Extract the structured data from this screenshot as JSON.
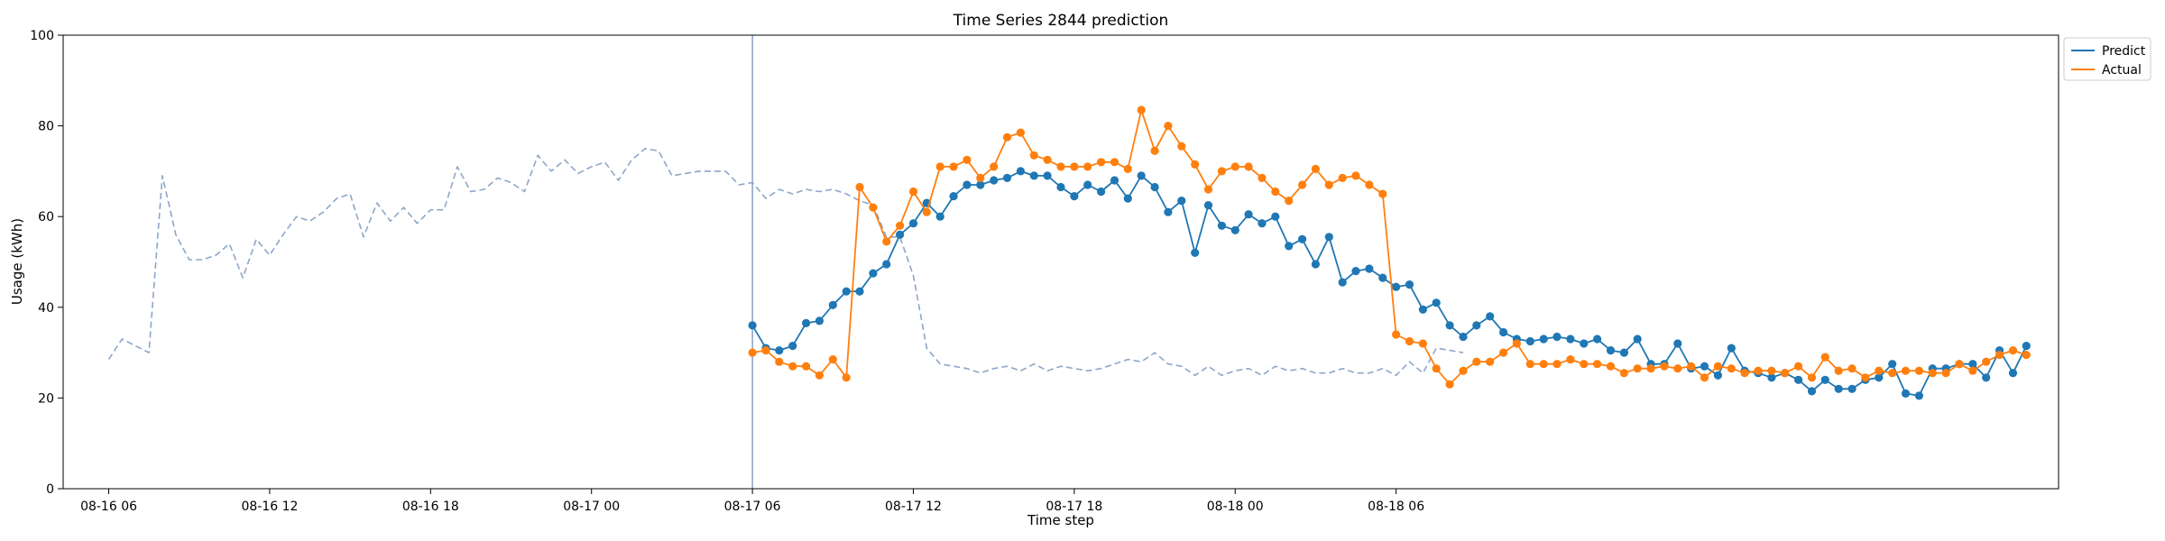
{
  "chart_data": {
    "type": "line",
    "title": "Time Series 2844 prediction",
    "xlabel": "Time step",
    "ylabel": "Usage (kWh)",
    "ylim": [
      0,
      100
    ],
    "yticks": [
      0,
      20,
      40,
      60,
      80,
      100
    ],
    "xlim_hours": [
      -1.7,
      72.7
    ],
    "xtick_hours": [
      0,
      6,
      12,
      18,
      24,
      30,
      36,
      42,
      48
    ],
    "xtick_labels": [
      "08-16 06",
      "08-16 12",
      "08-16 18",
      "08-17 00",
      "08-17 06",
      "08-17 12",
      "08-17 18",
      "08-18 00",
      "08-18 06"
    ],
    "x_unit": "hours after 08-16 06:00 (step 0.5 h)",
    "vline_hour": 24,
    "legend": {
      "placement": "top-right-outside",
      "entries": [
        "Predict",
        "Actual"
      ]
    },
    "series": [
      {
        "name": "history",
        "style": "dashed",
        "color": "#8ea6c8",
        "start_hour": 0,
        "step_hours": 0.5,
        "values": [
          28.5,
          33,
          31.5,
          30,
          69,
          56,
          50.5,
          50.5,
          51.5,
          54,
          46.5,
          55,
          51.5,
          56,
          60,
          59,
          61,
          64,
          65,
          55.5,
          63,
          59,
          62,
          58.5,
          61.5,
          61.5,
          71,
          65.5,
          66,
          68.5,
          67.5,
          65.5,
          73.5,
          70,
          72.5,
          69.5,
          71,
          72,
          68,
          72.5,
          75,
          74.5,
          69,
          69.5,
          70,
          70,
          70,
          67,
          67.5,
          64,
          66,
          65,
          66,
          65.5,
          66,
          65,
          63.5,
          62.5,
          55.5,
          55.5,
          47,
          31,
          27.5,
          27,
          26.5,
          25.5,
          26.5,
          27,
          26,
          27.5,
          26,
          27,
          26.5,
          26,
          26.5,
          27.5,
          28.5,
          28,
          30,
          27.5,
          27,
          25,
          27,
          25,
          26,
          26.5,
          25,
          27,
          26,
          26.5,
          25.5,
          25.5,
          26.5,
          25.5,
          25.5,
          26.5,
          25,
          28,
          25.5,
          31,
          30.5,
          30
        ]
      },
      {
        "name": "Predict",
        "style": "solid-markers",
        "color": "#1f77b4",
        "start_hour": 24,
        "step_hours": 0.5,
        "values": [
          36,
          31,
          30.5,
          31.5,
          36.5,
          37,
          40.5,
          43.5,
          43.5,
          47.5,
          49.5,
          56,
          58.5,
          63,
          60,
          64.5,
          67,
          67,
          68,
          68.5,
          70,
          69,
          69,
          66.5,
          64.5,
          67,
          65.5,
          68,
          64,
          69,
          66.5,
          61,
          63.5,
          52,
          62.5,
          58,
          57,
          60.5,
          58.5,
          60,
          53.5,
          55,
          49.5,
          55.5,
          45.5,
          48,
          48.5,
          46.5,
          44.5,
          45,
          39.5,
          41,
          36,
          33.5,
          36,
          38,
          34.5,
          33,
          32.5,
          33,
          33.5,
          33,
          32,
          33,
          30.5,
          30,
          33,
          27.5,
          27.5,
          32,
          26.5,
          27,
          25,
          31,
          26,
          25.5,
          24.5,
          25.5,
          24,
          21.5,
          24,
          22,
          22,
          24,
          24.5,
          27.5,
          21,
          20.5,
          26.5,
          26.5,
          27.5,
          27.5,
          24.5,
          30.5,
          25.5,
          31.5
        ]
      },
      {
        "name": "Actual",
        "style": "solid-markers",
        "color": "#ff7f0e",
        "start_hour": 24,
        "step_hours": 0.5,
        "values": [
          30,
          30.5,
          28,
          27,
          27,
          25,
          28.5,
          24.5,
          66.5,
          62,
          54.5,
          58,
          65.5,
          61,
          71,
          71,
          72.5,
          68.5,
          71,
          77.5,
          78.5,
          73.5,
          72.5,
          71,
          71,
          71,
          72,
          72,
          70.5,
          83.5,
          74.5,
          80,
          75.5,
          71.5,
          66,
          70,
          71,
          71,
          68.5,
          65.5,
          63.5,
          67,
          70.5,
          67,
          68.5,
          69,
          67,
          65,
          34,
          32.5,
          32,
          26.5,
          23,
          26,
          28,
          28,
          30,
          32,
          27.5,
          27.5,
          27.5,
          28.5,
          27.5,
          27.5,
          27,
          25.5,
          26.5,
          26.5,
          27,
          26.5,
          27,
          24.5,
          27,
          26.5,
          25.5,
          26,
          26,
          25.5,
          27,
          24.5,
          29,
          26,
          26.5,
          24.5,
          26,
          25.5,
          26,
          26,
          25.5,
          25.5,
          27.5,
          26,
          28,
          29.5,
          30.5,
          29.5
        ]
      }
    ]
  }
}
